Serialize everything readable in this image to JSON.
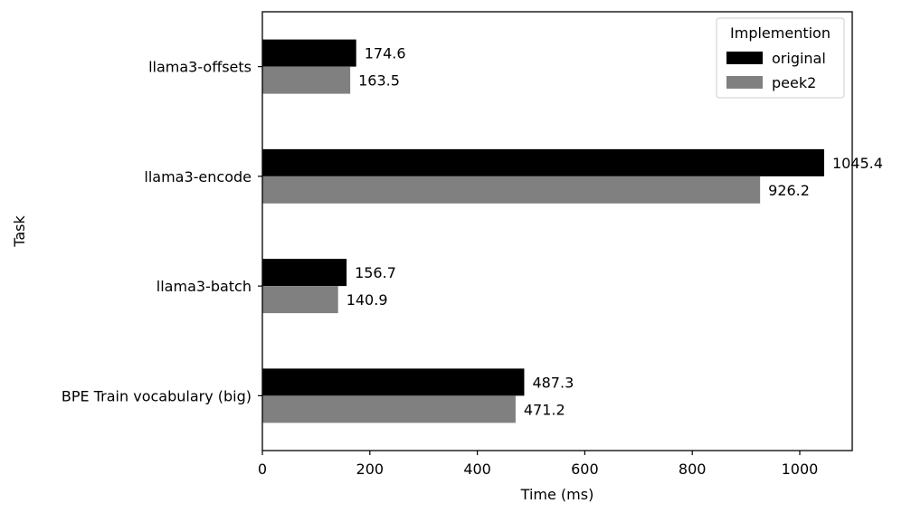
{
  "chart_data": {
    "type": "bar",
    "orientation": "horizontal",
    "title": "",
    "xlabel": "Time (ms)",
    "ylabel": "Task",
    "categories": [
      "llama3-offsets",
      "llama3-encode",
      "llama3-batch",
      "BPE Train vocabulary (big)"
    ],
    "series": [
      {
        "name": "original",
        "color": "#000000",
        "values": [
          174.6,
          1045.4,
          156.7,
          487.3
        ]
      },
      {
        "name": "peek2",
        "color": "#808080",
        "values": [
          163.5,
          926.2,
          140.9,
          471.2
        ]
      }
    ],
    "value_labels": {
      "original": [
        "174.6",
        "1045.4",
        "156.7",
        "487.3"
      ],
      "peek2": [
        "163.5",
        "926.2",
        "140.9",
        "471.2"
      ]
    },
    "xlim": [
      0,
      1097.67
    ],
    "xticks": [
      0,
      200,
      400,
      600,
      800,
      1000
    ],
    "xtick_labels": [
      "0",
      "200",
      "400",
      "600",
      "800",
      "1000"
    ],
    "legend": {
      "title": "Implemention",
      "placement": "top-right"
    },
    "grid": false
  }
}
